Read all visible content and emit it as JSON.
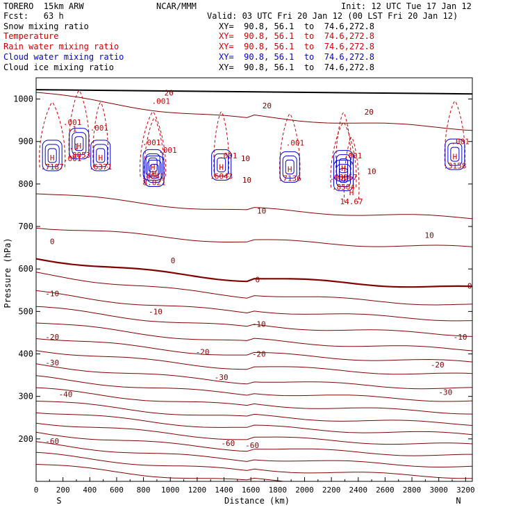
{
  "header": {
    "model": "TORERO  15km ARW",
    "center": "NCAR/MMM",
    "init": "Init: 12 UTC Tue 17 Jan 12",
    "fcst": "Fcst:   63 h",
    "valid": "Valid: 03 UTC Fri 20 Jan 12 (00 LST Fri 20 Jan 12)"
  },
  "fields": [
    {
      "name": "Snow mixing ratio",
      "xy": "XY=  90.8, 56.1  to  74.6,272.8",
      "color": "#000000"
    },
    {
      "name": "Temperature",
      "xy": "XY=  90.8, 56.1  to  74.6,272.8",
      "color": "#cc0000"
    },
    {
      "name": "Rain water mixing ratio",
      "xy": "XY=  90.8, 56.1  to  74.6,272.8",
      "color": "#cc0000"
    },
    {
      "name": "Cloud water mixing ratio",
      "xy": "XY=  90.8, 56.1  to  74.6,272.8",
      "color": "#0000cc"
    },
    {
      "name": "Cloud ice mixing ratio",
      "xy": "XY=  90.8, 56.1  to  74.6,272.8",
      "color": "#000000"
    }
  ],
  "chart_data": {
    "type": "contour",
    "title": "",
    "xlabel": "Distance (km)",
    "ylabel": "Pressure (hPa)",
    "xlim": [
      0,
      3250
    ],
    "ylim": [
      1050,
      100
    ],
    "x_ticks": [
      0,
      100,
      200,
      300,
      400,
      500,
      600,
      700,
      800,
      900,
      1000,
      1100,
      1200,
      1300,
      1400,
      1500,
      1600,
      1700,
      1800,
      1900,
      2000,
      2100,
      2200,
      2300,
      2400,
      2500,
      2600,
      2700,
      2800,
      2900,
      3000,
      3100,
      3200
    ],
    "x_tick_labels": [
      "0",
      "200",
      "400",
      "600",
      "800",
      "1000",
      "1200",
      "1400",
      "1600",
      "1800",
      "2000",
      "2200",
      "2400",
      "2600",
      "2800",
      "3000",
      "3200"
    ],
    "y_tick_labels": [
      "200",
      "300",
      "400",
      "500",
      "600",
      "700",
      "800",
      "900",
      "1000"
    ],
    "y_ticks": [
      200,
      300,
      400,
      500,
      600,
      700,
      800,
      900,
      1000
    ],
    "end_labels": {
      "left": "S",
      "right": "N"
    },
    "colors": {
      "temperature": "#800000",
      "freezing": "#800000",
      "rain": "#cc0000",
      "cloud_water": "#0000cc",
      "ground": "#000000"
    },
    "temperature_contours": [
      {
        "value": -60,
        "label": "-60",
        "p_left": 140,
        "p_right": 85
      },
      {
        "value": -60,
        "label": "-60",
        "p_left": 165,
        "p_right": 110
      },
      {
        "value": -60,
        "label": "-60",
        "p_left": 190,
        "p_right": 135
      },
      {
        "value": -60,
        "label": "-60",
        "p_left": 215,
        "p_right": 160
      },
      {
        "value": -40,
        "label": "-40",
        "p_left": 240,
        "p_right": 185
      },
      {
        "value": -40,
        "label": "-40",
        "p_left": 265,
        "p_right": 210
      },
      {
        "value": -40,
        "label": "-40",
        "p_left": 290,
        "p_right": 235
      },
      {
        "value": -30,
        "label": "-30",
        "p_left": 318,
        "p_right": 262
      },
      {
        "value": -30,
        "label": "-30",
        "p_left": 345,
        "p_right": 290
      },
      {
        "value": -20,
        "label": "-20",
        "p_left": 375,
        "p_right": 318
      },
      {
        "value": -20,
        "label": "-20",
        "p_left": 410,
        "p_right": 350
      },
      {
        "value": -20,
        "label": "-20",
        "p_left": 440,
        "p_right": 380
      },
      {
        "value": -10,
        "label": "-10",
        "p_left": 475,
        "p_right": 410
      },
      {
        "value": -10,
        "label": "-10",
        "p_left": 510,
        "p_right": 445
      },
      {
        "value": -10,
        "label": "-10",
        "p_left": 545,
        "p_right": 480
      },
      {
        "value": -10,
        "label": "-10",
        "p_left": 590,
        "p_right": 515
      },
      {
        "value": 0,
        "label": "0",
        "p_left": 625,
        "p_right": 555
      },
      {
        "value": 10,
        "label": "10",
        "p_left": 700,
        "p_right": 650
      },
      {
        "value": 10,
        "label": "10",
        "p_left": 780,
        "p_right": 720
      },
      {
        "value": 20,
        "label": "20",
        "p_left": 1015,
        "p_right": 930
      }
    ],
    "labels": [
      {
        "text": "-60",
        "x": 120,
        "p": 195
      },
      {
        "text": "-60",
        "x": 1430,
        "p": 190
      },
      {
        "text": "-60",
        "x": 1610,
        "p": 185
      },
      {
        "text": "-40",
        "x": 220,
        "p": 305
      },
      {
        "text": "-30",
        "x": 1380,
        "p": 345
      },
      {
        "text": "-30",
        "x": 3050,
        "p": 310
      },
      {
        "text": "-30",
        "x": 120,
        "p": 380
      },
      {
        "text": "-20",
        "x": 1240,
        "p": 405
      },
      {
        "text": "-20",
        "x": 1660,
        "p": 400
      },
      {
        "text": "-20",
        "x": 2990,
        "p": 375
      },
      {
        "text": "-20",
        "x": 120,
        "p": 440
      },
      {
        "text": "-10",
        "x": 1660,
        "p": 470
      },
      {
        "text": "-10",
        "x": 890,
        "p": 500
      },
      {
        "text": "-10",
        "x": 3160,
        "p": 440
      },
      {
        "text": "-10",
        "x": 120,
        "p": 542
      },
      {
        "text": "0",
        "x": 1650,
        "p": 575
      },
      {
        "text": "0",
        "x": 1020,
        "p": 620
      },
      {
        "text": "0",
        "x": 3230,
        "p": 560
      },
      {
        "text": "0",
        "x": 120,
        "p": 665
      },
      {
        "text": "10",
        "x": 2930,
        "p": 680
      },
      {
        "text": "10",
        "x": 1680,
        "p": 737
      },
      {
        "text": "10",
        "x": 1570,
        "p": 810
      },
      {
        "text": "10",
        "x": 2500,
        "p": 830
      },
      {
        "text": "10",
        "x": 1560,
        "p": 860
      },
      {
        "text": "20",
        "x": 1720,
        "p": 985
      },
      {
        "text": "20",
        "x": 2480,
        "p": 970
      },
      {
        "text": "20",
        "x": 990,
        "p": 1015
      },
      {
        "text": ".001",
        "x": 270,
        "p": 860
      },
      {
        "text": ".001",
        "x": 470,
        "p": 932
      },
      {
        "text": ".001",
        "x": 270,
        "p": 945
      },
      {
        "text": ".001",
        "x": 860,
        "p": 898
      },
      {
        "text": ".001",
        "x": 980,
        "p": 880
      },
      {
        "text": ".001",
        "x": 930,
        "p": 995
      },
      {
        "text": ".001",
        "x": 1430,
        "p": 867
      },
      {
        "text": ".001",
        "x": 1930,
        "p": 897
      },
      {
        "text": ".001",
        "x": 2360,
        "p": 867
      },
      {
        "text": ".001",
        "x": 3160,
        "p": 900
      },
      {
        "text": ".1",
        "x": 280,
        "p": 888
      },
      {
        "text": ".1",
        "x": 270,
        "p": 930
      }
    ],
    "maxima": [
      {
        "mark": "H",
        "value": "14.67",
        "x": 2350,
        "p": 770
      },
      {
        "mark": "H",
        "value": "8.021",
        "x": 880,
        "p": 815
      },
      {
        "mark": "H",
        "value": ".7187",
        "x": 120,
        "p": 852
      },
      {
        "mark": "H",
        "value": ".6371",
        "x": 480,
        "p": 852
      },
      {
        "mark": "H",
        "value": ".8853",
        "x": 320,
        "p": 880
      },
      {
        "mark": "H",
        "value": ".4041",
        "x": 870,
        "p": 830
      },
      {
        "mark": "H",
        "value": ".6043",
        "x": 1380,
        "p": 830
      },
      {
        "mark": "H",
        "value": ".7136",
        "x": 1890,
        "p": 825
      },
      {
        "mark": "H",
        "value": ".8504",
        "x": 2290,
        "p": 805
      },
      {
        "mark": "H",
        "value": ".08367",
        "x": 2290,
        "p": 828
      },
      {
        "mark": "H",
        "value": ".3158",
        "x": 3120,
        "p": 855
      }
    ]
  }
}
